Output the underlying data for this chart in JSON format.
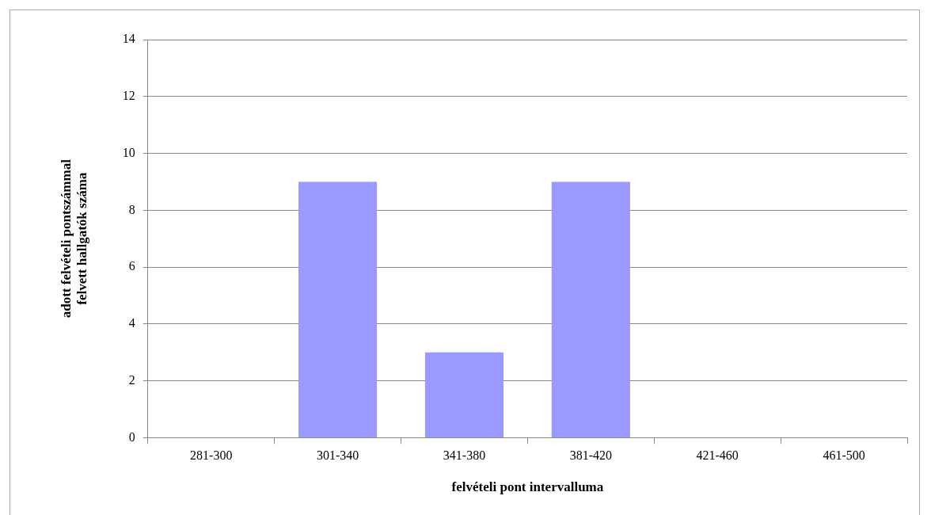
{
  "chart_data": {
    "type": "bar",
    "xlabel": "felvételi pont intervalluma",
    "ylabel": "adott felvételi pontszámmal\nfelvett hallgatók száma",
    "categories": [
      "281-300",
      "301-340",
      "341-380",
      "381-420",
      "421-460",
      "461-500"
    ],
    "series": [
      {
        "color": "#9999ff",
        "values": [
          0,
          9,
          3,
          9,
          0,
          0
        ]
      }
    ],
    "ylim": [
      0,
      14
    ],
    "yticks": [
      0,
      2,
      4,
      6,
      8,
      10,
      12,
      14
    ],
    "grid": "y",
    "legend": false
  }
}
